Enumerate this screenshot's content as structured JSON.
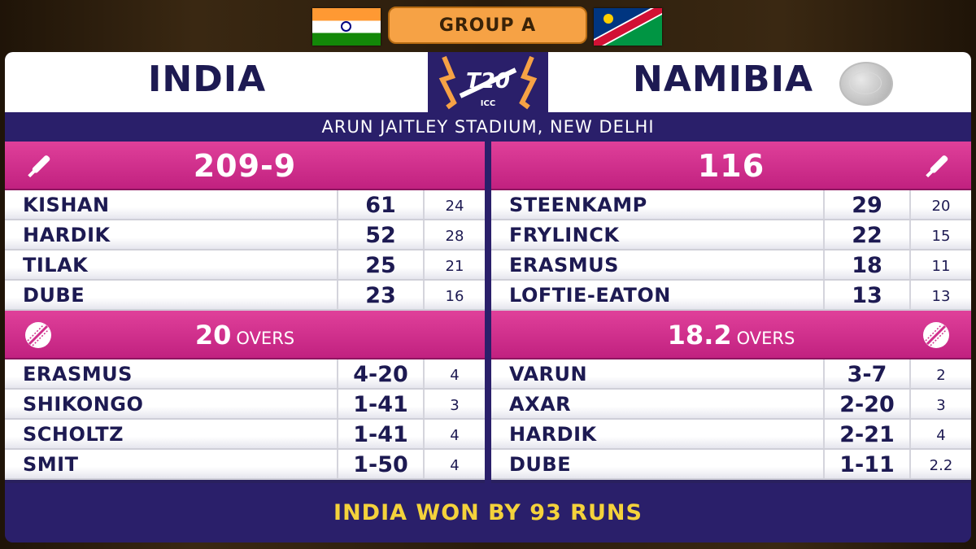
{
  "group_label": "GROUP A",
  "logo": {
    "text": "T20",
    "sub": "ICC"
  },
  "team_a": {
    "name": "INDIA",
    "flag": "india-flag"
  },
  "team_b": {
    "name": "NAMIBIA",
    "flag": "namibia-flag"
  },
  "venue": "ARUN JAITLEY STADIUM, NEW DELHI",
  "innings_a": {
    "score": "209-9",
    "overs": "20",
    "overs_label": "OVERS",
    "batters": [
      {
        "name": "KISHAN",
        "runs": "61",
        "balls": "24"
      },
      {
        "name": "HARDIK",
        "runs": "52",
        "balls": "28"
      },
      {
        "name": "TILAK",
        "runs": "25",
        "balls": "21"
      },
      {
        "name": "DUBE",
        "runs": "23",
        "balls": "16"
      }
    ],
    "bowlers": [
      {
        "name": "ERASMUS",
        "figures": "4-20",
        "overs": "4"
      },
      {
        "name": "SHIKONGO",
        "figures": "1-41",
        "overs": "3"
      },
      {
        "name": "SCHOLTZ",
        "figures": "1-41",
        "overs": "4"
      },
      {
        "name": "SMIT",
        "figures": "1-50",
        "overs": "4"
      }
    ]
  },
  "innings_b": {
    "score": "116",
    "overs": "18.2",
    "overs_label": "OVERS",
    "batters": [
      {
        "name": "STEENKAMP",
        "runs": "29",
        "balls": "20"
      },
      {
        "name": "FRYLINCK",
        "runs": "22",
        "balls": "15"
      },
      {
        "name": "ERASMUS",
        "runs": "18",
        "balls": "11"
      },
      {
        "name": "LOFTIE-EATON",
        "runs": "13",
        "balls": "13"
      }
    ],
    "bowlers": [
      {
        "name": "VARUN",
        "figures": "3-7",
        "overs": "2"
      },
      {
        "name": "AXAR",
        "figures": "2-20",
        "overs": "3"
      },
      {
        "name": "HARDIK",
        "figures": "2-21",
        "overs": "4"
      },
      {
        "name": "DUBE",
        "figures": "1-11",
        "overs": "2.2"
      }
    ]
  },
  "result": "INDIA WON BY 93 RUNS",
  "colors": {
    "navy": "#1d1a52",
    "board": "#2a1f6a",
    "pink": "#d0308c",
    "orange": "#f6a245",
    "gold": "#f4d23b"
  },
  "icons": {
    "batting": "cricket-bat-icon",
    "bowling": "cricket-ball-icon"
  }
}
